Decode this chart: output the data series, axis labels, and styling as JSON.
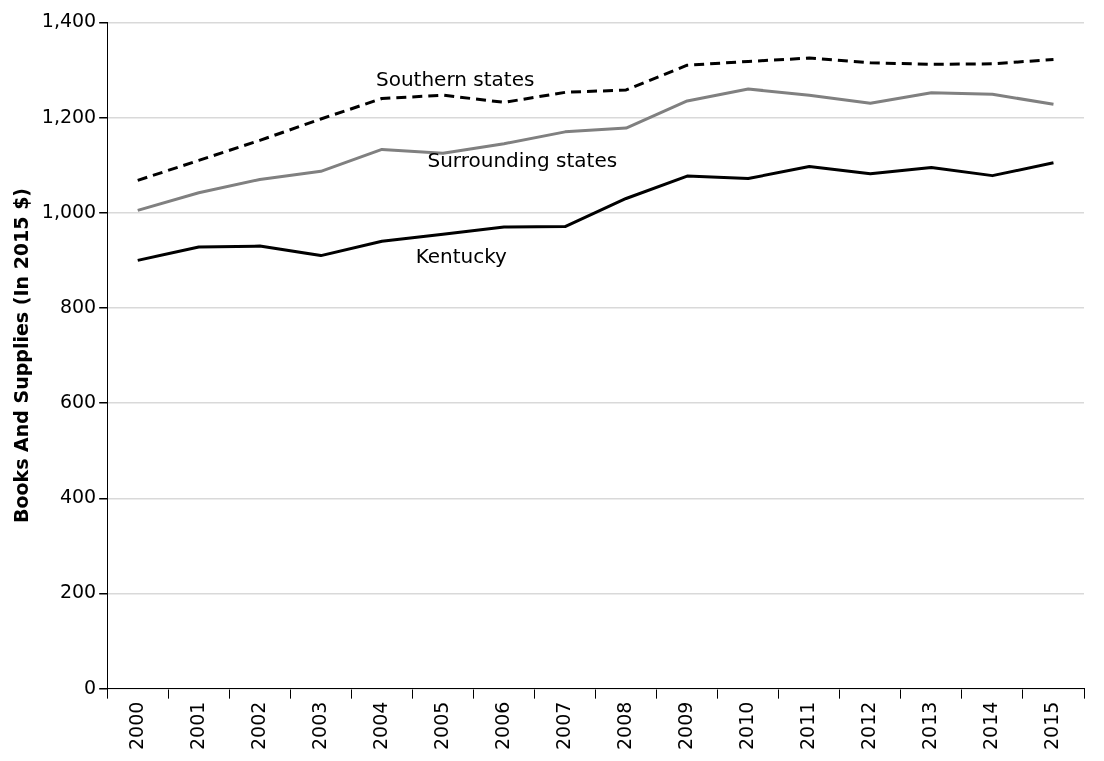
{
  "chart_data": {
    "type": "line",
    "ylabel": "Books And Supplies (In 2015 $)",
    "categories": [
      "2000",
      "2001",
      "2002",
      "2003",
      "2004",
      "2005",
      "2006",
      "2007",
      "2008",
      "2009",
      "2010",
      "2011",
      "2012",
      "2013",
      "2014",
      "2015"
    ],
    "series": [
      {
        "name": "Southern states",
        "color": "#000000",
        "line_style": "dashed",
        "values": [
          1068,
          1110,
          1152,
          1197,
          1240,
          1247,
          1232,
          1253,
          1258,
          1310,
          1318,
          1325,
          1315,
          1312,
          1313,
          1322
        ]
      },
      {
        "name": "Surrounding states",
        "color": "#808080",
        "line_style": "solid",
        "values": [
          1005,
          1042,
          1070,
          1087,
          1133,
          1125,
          1145,
          1170,
          1178,
          1235,
          1260,
          1247,
          1230,
          1252,
          1249,
          1228
        ]
      },
      {
        "name": "Kentucky",
        "color": "#000000",
        "line_style": "solid",
        "values": [
          900,
          928,
          930,
          910,
          940,
          955,
          970,
          971,
          1030,
          1077,
          1072,
          1097,
          1082,
          1095,
          1078,
          1105
        ]
      }
    ],
    "ylim": [
      0,
      1400
    ],
    "yticks": [
      0,
      200,
      400,
      600,
      800,
      {
        "value": 1000,
        "label": "1,000"
      },
      {
        "value": 1200,
        "label": "1,200"
      },
      {
        "value": 1400,
        "label": "1,400"
      }
    ],
    "grid": "y",
    "legend": false,
    "marker": "none"
  }
}
